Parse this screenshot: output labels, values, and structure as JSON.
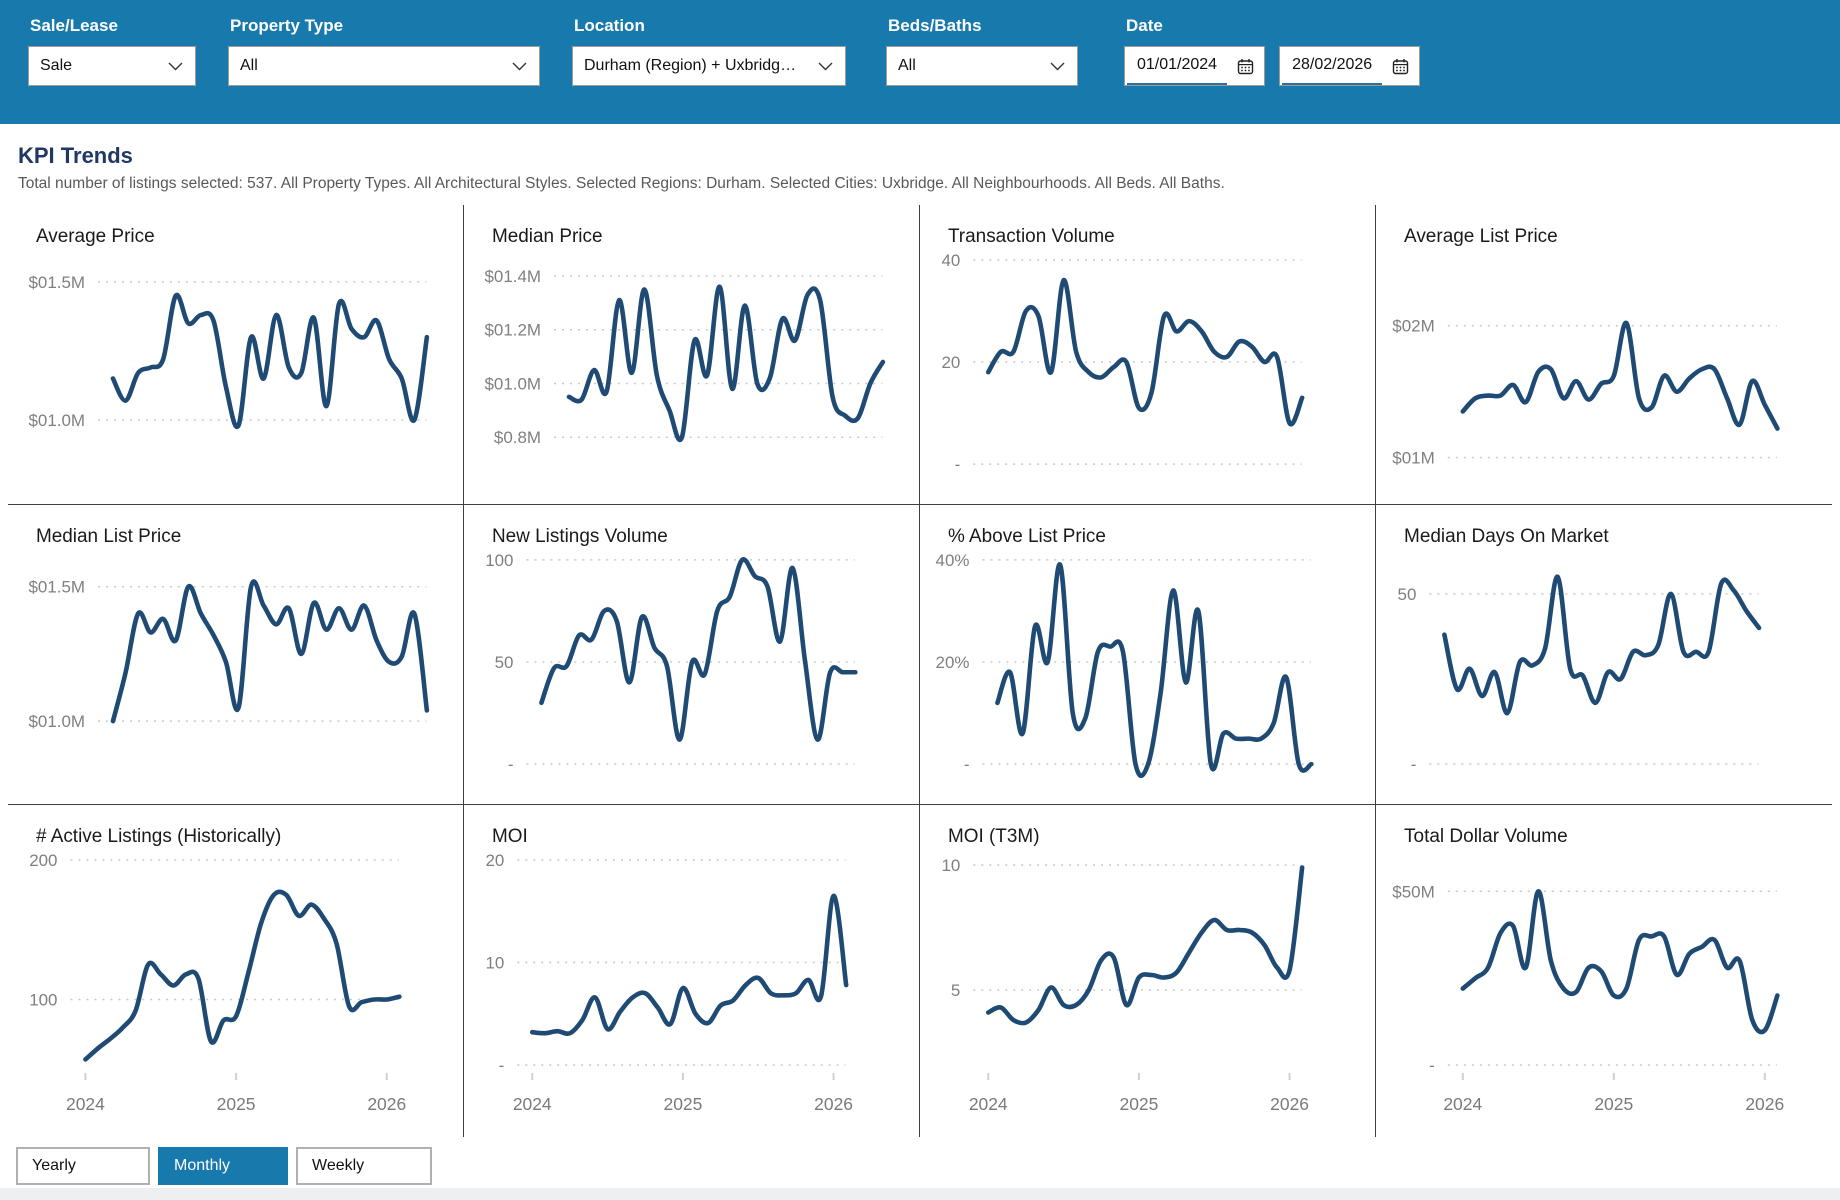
{
  "colors": {
    "accent": "#1879AD",
    "line": "#1E4A74",
    "heading": "#1F3864",
    "grid": "#c8c8c8",
    "tick_text": "#7f7f7f"
  },
  "filters": [
    {
      "label": "Sale/Lease",
      "value": "Sale"
    },
    {
      "label": "Property Type",
      "value": "All"
    },
    {
      "label": "Location",
      "value": "Durham (Region) + Uxbridg…"
    },
    {
      "label": "Beds/Baths",
      "value": "All"
    },
    {
      "label": "Date",
      "from": "01/01/2024",
      "to": "28/02/2026"
    }
  ],
  "page": {
    "title": "KPI Trends",
    "subtitle": "Total number of listings selected: 537. All Property Types. All Architectural Styles. Selected Regions: Durham. Selected Cities: Uxbridge. All Neighbourhoods. All Beds. All Baths."
  },
  "controls": {
    "buttons": [
      {
        "label": "Yearly",
        "active": false
      },
      {
        "label": "Monthly",
        "active": true
      },
      {
        "label": "Weekly",
        "active": false
      }
    ]
  },
  "chart_data": [
    {
      "type": "line",
      "title": "Average Price",
      "x_start": "2024-01",
      "x_end": "2026-02",
      "x_labels": [
        "2024",
        "2025",
        "2026"
      ],
      "ticks": [
        {
          "value": 1.5,
          "label": "$01.5M"
        },
        {
          "value": 1.0,
          "label": "$01.0M"
        }
      ],
      "ylim": [
        0.84,
        1.58
      ],
      "values": [
        1.15,
        1.07,
        1.17,
        1.19,
        1.22,
        1.45,
        1.35,
        1.38,
        1.36,
        1.12,
        0.98,
        1.3,
        1.15,
        1.38,
        1.19,
        1.17,
        1.37,
        1.05,
        1.42,
        1.33,
        1.3,
        1.36,
        1.22,
        1.15,
        1.0,
        1.3
      ]
    },
    {
      "type": "line",
      "title": "Median Price",
      "x_start": "2024-01",
      "x_end": "2026-02",
      "x_labels": [
        "2024",
        "2025",
        "2026"
      ],
      "ticks": [
        {
          "value": 1.4,
          "label": "$01.4M"
        },
        {
          "value": 1.2,
          "label": "$01.2M"
        },
        {
          "value": 1.0,
          "label": "$01.0M"
        },
        {
          "value": 0.8,
          "label": "$0.8M"
        }
      ],
      "ylim": [
        0.7,
        1.46
      ],
      "values": [
        0.95,
        0.94,
        1.05,
        0.97,
        1.31,
        1.04,
        1.35,
        1.03,
        0.9,
        0.8,
        1.16,
        1.03,
        1.36,
        0.98,
        1.29,
        1.0,
        1.02,
        1.24,
        1.16,
        1.33,
        1.31,
        0.95,
        0.88,
        0.87,
        1.0,
        1.08
      ]
    },
    {
      "type": "line",
      "title": "Transaction Volume",
      "x_start": "2024-01",
      "x_end": "2026-02",
      "x_labels": [
        "2024",
        "2025",
        "2026"
      ],
      "ticks": [
        {
          "value": 40,
          "label": "40"
        },
        {
          "value": 20,
          "label": "20"
        },
        {
          "value": 0,
          "label": "-"
        }
      ],
      "ylim": [
        0,
        40
      ],
      "values": [
        18,
        22,
        22,
        30,
        29,
        18,
        36,
        22,
        18,
        17,
        19,
        20,
        11,
        14,
        29,
        26,
        28,
        26,
        22,
        21,
        24,
        23,
        20,
        21,
        8,
        13
      ]
    },
    {
      "type": "line",
      "title": "Average List Price",
      "x_start": "2024-01",
      "x_end": "2026-02",
      "x_labels": [
        "2024",
        "2025",
        "2026"
      ],
      "ticks": [
        {
          "value": 2,
          "label": "$02M"
        },
        {
          "value": 1,
          "label": "$01M"
        }
      ],
      "ylim": [
        0.95,
        2.5
      ],
      "values": [
        1.35,
        1.45,
        1.47,
        1.47,
        1.55,
        1.42,
        1.65,
        1.67,
        1.45,
        1.58,
        1.44,
        1.56,
        1.62,
        2.02,
        1.45,
        1.38,
        1.62,
        1.5,
        1.6,
        1.67,
        1.67,
        1.45,
        1.25,
        1.58,
        1.4,
        1.22
      ]
    },
    {
      "type": "line",
      "title": "Median List Price",
      "x_start": "2024-01",
      "x_end": "2026-02",
      "x_labels": [
        "2024",
        "2025",
        "2026"
      ],
      "ticks": [
        {
          "value": 1.5,
          "label": "$01.5M"
        },
        {
          "value": 1.0,
          "label": "$01.0M"
        }
      ],
      "ylim": [
        0.84,
        1.6
      ],
      "values": [
        1.0,
        1.18,
        1.4,
        1.33,
        1.38,
        1.3,
        1.5,
        1.4,
        1.32,
        1.22,
        1.05,
        1.5,
        1.43,
        1.36,
        1.42,
        1.25,
        1.44,
        1.34,
        1.42,
        1.34,
        1.43,
        1.3,
        1.22,
        1.24,
        1.4,
        1.04
      ]
    },
    {
      "type": "line",
      "title": "New Listings Volume",
      "x_start": "2024-01",
      "x_end": "2026-02",
      "x_labels": [
        "2024",
        "2025",
        "2026"
      ],
      "ticks": [
        {
          "value": 100,
          "label": "100"
        },
        {
          "value": 50,
          "label": "50"
        },
        {
          "value": 0,
          "label": "-"
        }
      ],
      "ylim": [
        0,
        100
      ],
      "values": [
        30,
        47,
        48,
        63,
        61,
        75,
        70,
        40,
        72,
        57,
        48,
        12,
        50,
        44,
        75,
        82,
        100,
        92,
        87,
        60,
        96,
        50,
        12,
        45,
        45,
        45
      ]
    },
    {
      "type": "line",
      "title": "% Above List Price",
      "x_start": "2024-01",
      "x_end": "2026-02",
      "x_labels": [
        "2024",
        "2025",
        "2026"
      ],
      "ticks": [
        {
          "value": 40,
          "label": "40%"
        },
        {
          "value": 20,
          "label": "20%"
        },
        {
          "value": 0,
          "label": "-"
        }
      ],
      "ylim": [
        0,
        40
      ],
      "values": [
        12,
        18,
        6,
        27,
        20,
        39,
        10,
        9,
        22,
        23,
        22,
        0,
        0,
        14,
        34,
        16,
        30,
        0,
        6,
        5,
        5,
        5,
        8,
        17,
        0,
        0
      ]
    },
    {
      "type": "line",
      "title": "Median Days On Market",
      "x_start": "2024-01",
      "x_end": "2026-02",
      "x_labels": [
        "2024",
        "2025",
        "2026"
      ],
      "ticks": [
        {
          "value": 50,
          "label": "50"
        },
        {
          "value": 0,
          "label": "-"
        }
      ],
      "ylim": [
        0,
        60
      ],
      "values": [
        38,
        22,
        28,
        20,
        27,
        15,
        30,
        29,
        34,
        55,
        28,
        26,
        18,
        27,
        25,
        33,
        32,
        35,
        50,
        33,
        33,
        33,
        53,
        51,
        45,
        40
      ]
    },
    {
      "type": "line",
      "title": "# Active Listings (Historically)",
      "x_start": "2024-01",
      "x_end": "2026-02",
      "x_labels": [
        "2024",
        "2025",
        "2026"
      ],
      "ticks": [
        {
          "value": 200,
          "label": "200"
        },
        {
          "value": 100,
          "label": "100"
        }
      ],
      "ylim": [
        53,
        200
      ],
      "values": [
        57,
        65,
        72,
        80,
        92,
        125,
        118,
        110,
        118,
        115,
        70,
        85,
        88,
        120,
        155,
        175,
        175,
        160,
        168,
        158,
        140,
        95,
        98,
        100,
        100,
        102
      ]
    },
    {
      "type": "line",
      "title": "MOI",
      "x_start": "2024-01",
      "x_end": "2026-02",
      "x_labels": [
        "2024",
        "2025",
        "2026"
      ],
      "ticks": [
        {
          "value": 20,
          "label": "20"
        },
        {
          "value": 10,
          "label": "10"
        },
        {
          "value": 0,
          "label": "-"
        }
      ],
      "ylim": [
        0,
        20
      ],
      "values": [
        3.2,
        3.1,
        3.3,
        3.1,
        4.4,
        6.6,
        3.5,
        5.2,
        6.6,
        7.0,
        5.6,
        4.0,
        7.5,
        5.0,
        4.1,
        5.8,
        6.3,
        7.8,
        8.5,
        7.0,
        6.8,
        7.0,
        8.3,
        6.7,
        16.5,
        7.8
      ]
    },
    {
      "type": "line",
      "title": "MOI (T3M)",
      "x_start": "2024-01",
      "x_end": "2026-02",
      "x_labels": [
        "2024",
        "2025",
        "2026"
      ],
      "ticks": [
        {
          "value": 10,
          "label": "10"
        },
        {
          "value": 5,
          "label": "5"
        }
      ],
      "ylim": [
        2,
        10.2
      ],
      "values": [
        4.1,
        4.3,
        3.8,
        3.7,
        4.2,
        5.1,
        4.4,
        4.4,
        5.0,
        6.2,
        6.3,
        4.4,
        5.5,
        5.6,
        5.5,
        5.7,
        6.5,
        7.3,
        7.8,
        7.4,
        7.4,
        7.3,
        6.8,
        5.9,
        5.8,
        9.9
      ]
    },
    {
      "type": "line",
      "title": "Total Dollar Volume",
      "x_start": "2024-01",
      "x_end": "2026-02",
      "x_labels": [
        "2024",
        "2025",
        "2026"
      ],
      "ticks": [
        {
          "value": 50,
          "label": "$50M"
        },
        {
          "value": 0,
          "label": "-"
        }
      ],
      "ylim": [
        0,
        59
      ],
      "values": [
        22,
        25,
        28,
        38,
        40,
        28,
        50,
        30,
        22,
        21,
        28,
        27,
        20,
        22,
        36,
        37,
        37,
        26,
        32,
        34,
        36,
        28,
        30,
        13,
        10,
        20
      ]
    }
  ]
}
